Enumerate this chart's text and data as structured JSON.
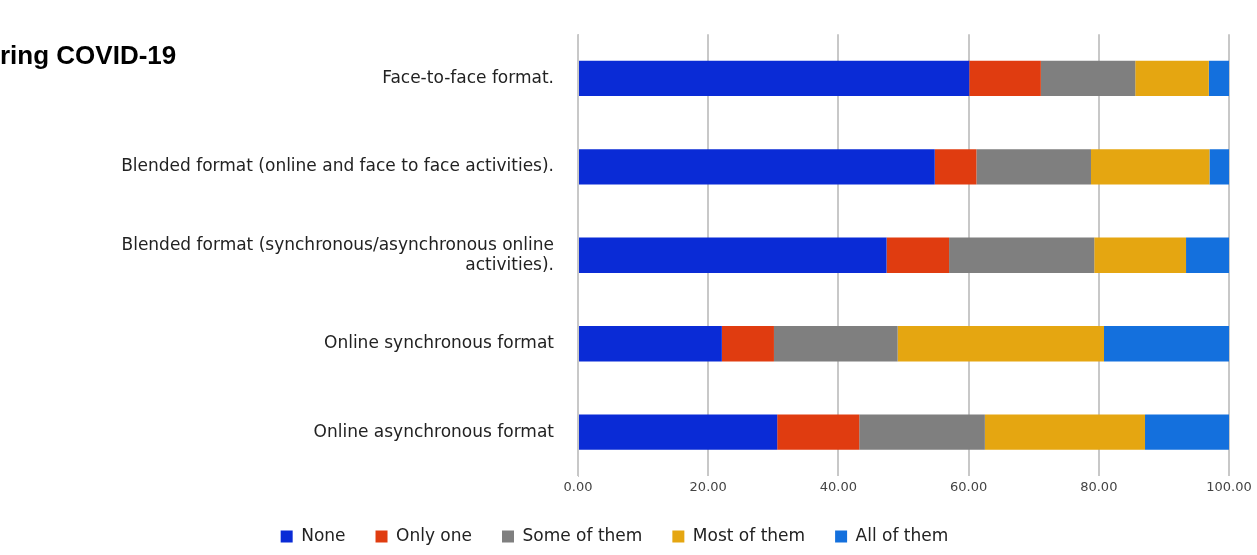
{
  "chart_data": {
    "type": "bar",
    "orientation": "horizontal",
    "stacked": true,
    "title": "ring COVID-19",
    "categories": [
      "Face-to-face format.",
      "Blended format (online and face to face activities).",
      "Blended format (synchronous/asynchronous online activities).",
      "Online synchronous format",
      "Online asynchronous format"
    ],
    "series": [
      {
        "name": "None",
        "color": "#0a2bd6",
        "values": [
          60.1,
          54.8,
          47.4,
          22.1,
          30.6
        ]
      },
      {
        "name": "Only one",
        "color": "#e03c10",
        "values": [
          11.0,
          6.4,
          9.6,
          8.0,
          12.6
        ]
      },
      {
        "name": "Some of them",
        "color": "#7f7f7f",
        "values": [
          14.5,
          17.6,
          22.3,
          19.0,
          19.3
        ]
      },
      {
        "name": "Most of them",
        "color": "#e5a611",
        "values": [
          11.3,
          18.2,
          14.1,
          31.7,
          24.6
        ]
      },
      {
        "name": "All of them",
        "color": "#1470dd",
        "values": [
          3.1,
          3.0,
          6.6,
          19.2,
          12.9
        ]
      }
    ],
    "xlim": [
      0,
      100
    ],
    "xticks": [
      {
        "value": 0,
        "label": "0.00"
      },
      {
        "value": 20,
        "label": "20.00"
      },
      {
        "value": 40,
        "label": "40.00"
      },
      {
        "value": 60,
        "label": "60.00"
      },
      {
        "value": 80,
        "label": "80.00"
      },
      {
        "value": 100,
        "label": "100.00"
      }
    ],
    "grid": "x",
    "legend": "bottom"
  }
}
